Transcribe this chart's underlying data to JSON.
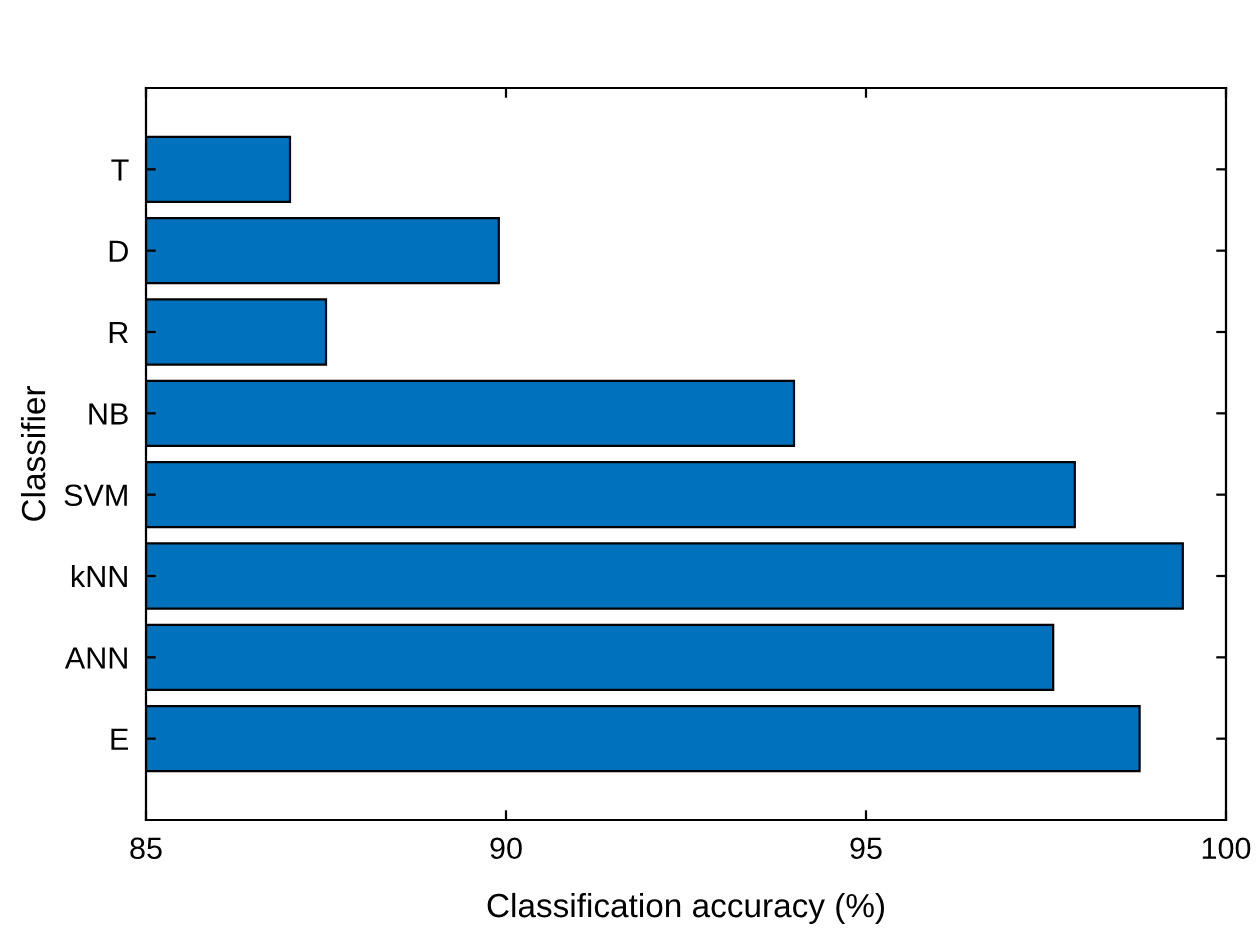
{
  "chart_data": {
    "type": "bar",
    "orientation": "horizontal",
    "xlabel": "Classification accuracy (%)",
    "ylabel": "Classifier",
    "categories": [
      "T",
      "D",
      "R",
      "NB",
      "SVM",
      "kNN",
      "ANN",
      "E"
    ],
    "values": [
      87,
      89.9,
      87.5,
      94,
      97.9,
      99.4,
      97.6,
      98.8
    ],
    "color": "#0072bd",
    "xlim": [
      85,
      100
    ],
    "xticks": [
      85,
      90,
      95,
      100
    ],
    "grid": false,
    "legend": false
  }
}
